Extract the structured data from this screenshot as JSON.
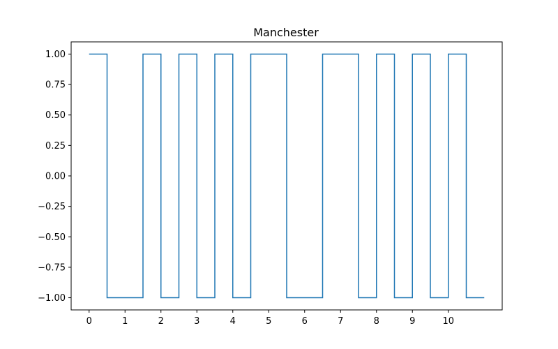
{
  "chart_data": {
    "type": "line",
    "title": "Manchester",
    "xlabel": "",
    "ylabel": "",
    "xlim": [
      -0.5,
      11.5
    ],
    "ylim": [
      -1.1,
      1.1
    ],
    "xticks": [
      0,
      1,
      2,
      3,
      4,
      5,
      6,
      7,
      8,
      9,
      10
    ],
    "xtick_labels": [
      "0",
      "1",
      "2",
      "3",
      "4",
      "5",
      "6",
      "7",
      "8",
      "9",
      "10"
    ],
    "yticks": [
      1.0,
      0.75,
      0.5,
      0.25,
      0.0,
      -0.25,
      -0.5,
      -0.75,
      -1.0
    ],
    "ytick_labels": [
      "1.00",
      "0.75",
      "0.50",
      "0.25",
      "0.00",
      "−0.25",
      "−0.50",
      "−0.75",
      "−1.00"
    ],
    "grid": false,
    "legend": "none",
    "series": [
      {
        "color": "#1f77b4",
        "x": [
          0,
          0.5,
          0.5,
          1.5,
          1.5,
          2,
          2,
          2.5,
          2.5,
          3,
          3,
          3.5,
          3.5,
          4,
          4,
          4.5,
          4.5,
          5.5,
          5.5,
          6.5,
          6.5,
          7.5,
          7.5,
          8,
          8,
          8.5,
          8.5,
          9,
          9,
          9.5,
          9.5,
          10,
          10,
          10.5,
          10.5,
          11
        ],
        "y": [
          1,
          1,
          -1,
          -1,
          1,
          1,
          -1,
          -1,
          1,
          1,
          -1,
          -1,
          1,
          1,
          -1,
          -1,
          1,
          1,
          -1,
          -1,
          1,
          1,
          -1,
          -1,
          1,
          1,
          -1,
          -1,
          1,
          1,
          -1,
          -1,
          1,
          1,
          -1,
          -1
        ]
      }
    ]
  }
}
